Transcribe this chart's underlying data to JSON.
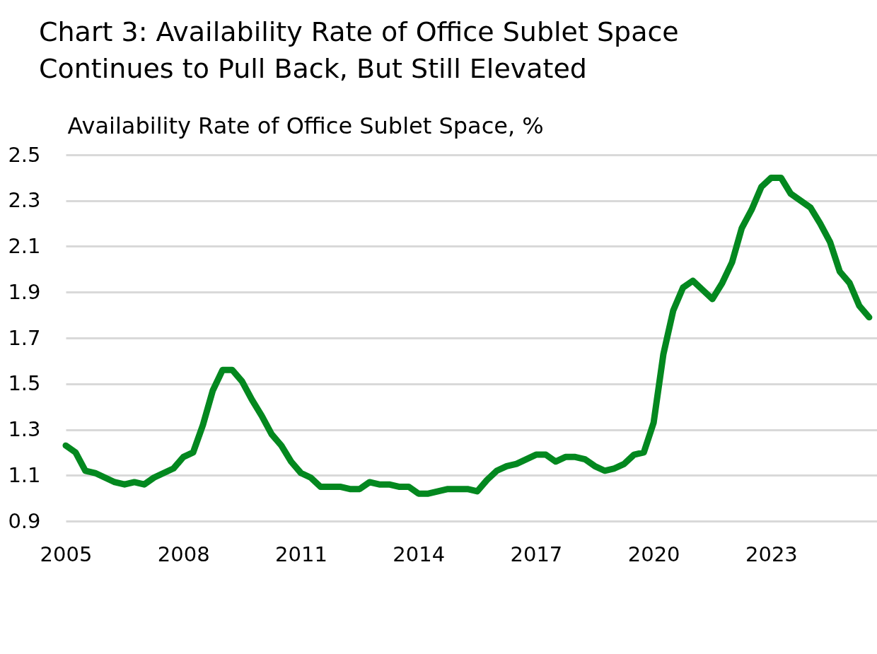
{
  "chart_data": {
    "type": "line",
    "title": "Chart 3: Availability Rate of Office Sublet Space Continues to Pull Back, But Still Elevated",
    "ylabel": "Availability Rate of Office Sublet Space, %",
    "x": [
      2005,
      2005.25,
      2005.5,
      2005.75,
      2006,
      2006.25,
      2006.5,
      2006.75,
      2007,
      2007.25,
      2007.5,
      2007.75,
      2008,
      2008.25,
      2008.5,
      2008.75,
      2009,
      2009.25,
      2009.5,
      2009.75,
      2010,
      2010.25,
      2010.5,
      2010.75,
      2011,
      2011.25,
      2011.5,
      2011.75,
      2012,
      2012.25,
      2012.5,
      2012.75,
      2013,
      2013.25,
      2013.5,
      2013.75,
      2014,
      2014.25,
      2014.5,
      2014.75,
      2015,
      2015.25,
      2015.5,
      2015.75,
      2016,
      2016.25,
      2016.5,
      2016.75,
      2017,
      2017.25,
      2017.5,
      2017.75,
      2018,
      2018.25,
      2018.5,
      2018.75,
      2019,
      2019.25,
      2019.5,
      2019.75,
      2020,
      2020.25,
      2020.5,
      2020.75,
      2021,
      2021.25,
      2021.5,
      2021.75,
      2022,
      2022.25,
      2022.5,
      2022.75,
      2023,
      2023.25,
      2023.5,
      2023.75,
      2024,
      2024.25,
      2024.5,
      2024.75,
      2025,
      2025.25,
      2025.5
    ],
    "values": [
      1.23,
      1.2,
      1.12,
      1.11,
      1.09,
      1.07,
      1.06,
      1.07,
      1.06,
      1.09,
      1.11,
      1.13,
      1.18,
      1.2,
      1.32,
      1.47,
      1.56,
      1.56,
      1.51,
      1.43,
      1.36,
      1.28,
      1.23,
      1.16,
      1.11,
      1.09,
      1.05,
      1.05,
      1.05,
      1.04,
      1.04,
      1.07,
      1.06,
      1.06,
      1.05,
      1.05,
      1.02,
      1.02,
      1.03,
      1.04,
      1.04,
      1.04,
      1.03,
      1.08,
      1.12,
      1.14,
      1.15,
      1.17,
      1.19,
      1.19,
      1.16,
      1.18,
      1.18,
      1.17,
      1.14,
      1.12,
      1.13,
      1.15,
      1.19,
      1.2,
      1.33,
      1.63,
      1.82,
      1.92,
      1.95,
      1.91,
      1.87,
      1.94,
      2.03,
      2.18,
      2.26,
      2.36,
      2.4,
      2.4,
      2.33,
      2.3,
      2.27,
      2.2,
      2.12,
      1.99,
      1.94,
      1.84,
      1.79
    ],
    "color": "#03881f",
    "xlim": [
      2005,
      2025.7
    ],
    "xticks": [
      2005,
      2008,
      2011,
      2014,
      2017,
      2020,
      2023
    ],
    "ylim": [
      0.9,
      2.5
    ],
    "yticks": [
      0.9,
      1.1,
      1.3,
      1.5,
      1.7,
      1.9,
      2.1,
      2.3,
      2.5
    ],
    "grid": "y"
  }
}
